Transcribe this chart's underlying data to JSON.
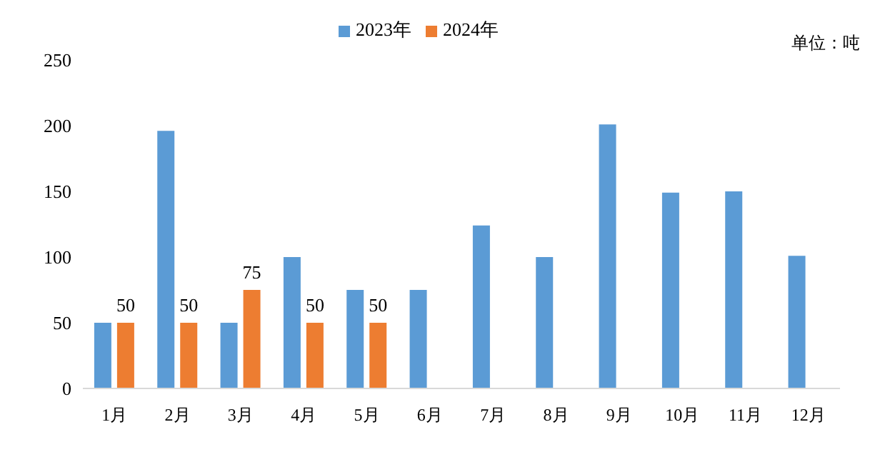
{
  "chart_data": {
    "type": "bar",
    "categories": [
      "1月",
      "2月",
      "3月",
      "4月",
      "5月",
      "6月",
      "7月",
      "8月",
      "9月",
      "10月",
      "11月",
      "12月"
    ],
    "series": [
      {
        "name": "2023年",
        "color": "#5b9bd5",
        "values": [
          50,
          196,
          50,
          100,
          75,
          75,
          124,
          100,
          201,
          149,
          150,
          101
        ]
      },
      {
        "name": "2024年",
        "color": "#ed7d31",
        "values": [
          50,
          50,
          75,
          50,
          50,
          null,
          null,
          null,
          null,
          null,
          null,
          null
        ],
        "value_labels": [
          "50",
          "50",
          "75",
          "50",
          "50",
          null,
          null,
          null,
          null,
          null,
          null,
          null
        ]
      }
    ],
    "ylim": [
      0,
      250
    ],
    "yticks": [
      0,
      50,
      100,
      150,
      200,
      250
    ],
    "grid": false,
    "legend": "top",
    "annotations": [
      "单位：吨"
    ]
  }
}
